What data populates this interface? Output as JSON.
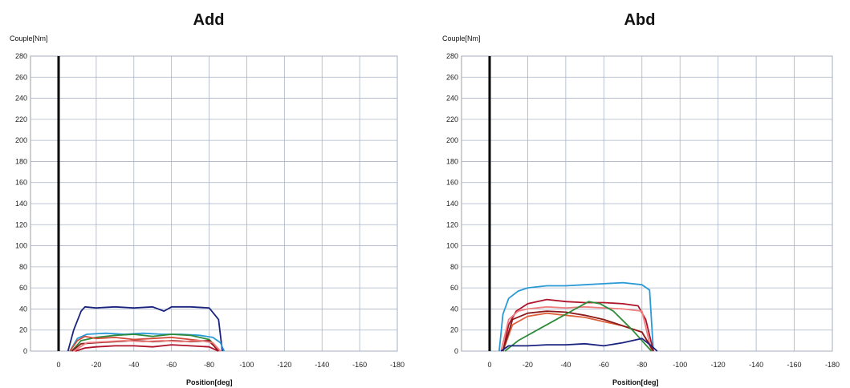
{
  "chart_data": [
    {
      "type": "line",
      "title": "Add",
      "ylabel": "Couple[Nm]",
      "xlabel": "Position[deg]",
      "xlim": [
        0,
        -180
      ],
      "ylim": [
        0,
        280
      ],
      "xticks": [
        0,
        -20,
        -40,
        -60,
        -80,
        -100,
        -120,
        -140,
        -160,
        -180
      ],
      "yticks": [
        0,
        20,
        40,
        60,
        80,
        100,
        120,
        140,
        160,
        180,
        200,
        220,
        240,
        260,
        280
      ],
      "grid": true,
      "series": [
        {
          "color": "#1a237e",
          "x": [
            -5,
            -8,
            -12,
            -14,
            -20,
            -30,
            -40,
            -50,
            -56,
            -60,
            -70,
            -80,
            -85,
            -87
          ],
          "y": [
            0,
            20,
            38,
            42,
            41,
            42,
            41,
            42,
            38,
            42,
            42,
            41,
            30,
            0
          ]
        },
        {
          "color": "#2a9ad6",
          "x": [
            -6,
            -10,
            -15,
            -25,
            -35,
            -45,
            -55,
            -65,
            -75,
            -82,
            -86,
            -88
          ],
          "y": [
            0,
            12,
            16,
            17,
            16,
            17,
            16,
            16,
            15,
            13,
            8,
            0
          ]
        },
        {
          "color": "#2e8b3a",
          "x": [
            -7,
            -12,
            -20,
            -30,
            -40,
            -50,
            -60,
            -70,
            -80,
            -86
          ],
          "y": [
            0,
            10,
            13,
            15,
            16,
            14,
            16,
            15,
            11,
            0
          ]
        },
        {
          "color": "#d24a3a",
          "x": [
            -6,
            -10,
            -14,
            -20,
            -30,
            -40,
            -50,
            -60,
            -70,
            -80,
            -86
          ],
          "y": [
            0,
            10,
            14,
            12,
            13,
            11,
            12,
            13,
            11,
            9,
            0
          ]
        },
        {
          "color": "#8b1a1a",
          "x": [
            -7,
            -12,
            -20,
            -30,
            -40,
            -50,
            -60,
            -70,
            -80,
            -85
          ],
          "y": [
            0,
            7,
            8,
            9,
            10,
            9,
            10,
            9,
            10,
            0
          ]
        },
        {
          "color": "#b0142a",
          "x": [
            -9,
            -14,
            -20,
            -30,
            -40,
            -50,
            -60,
            -70,
            -80,
            -85
          ],
          "y": [
            0,
            3,
            4,
            5,
            5,
            4,
            6,
            5,
            4,
            0
          ]
        },
        {
          "color": "#f08080",
          "x": [
            -8,
            -15,
            -25,
            -35,
            -45,
            -55,
            -65,
            -75,
            -82,
            -86
          ],
          "y": [
            0,
            8,
            9,
            10,
            9,
            10,
            9,
            10,
            8,
            0
          ]
        }
      ]
    },
    {
      "type": "line",
      "title": "Abd",
      "ylabel": "Couple[Nm]",
      "xlabel": "Position[deg]",
      "xlim": [
        0,
        -180
      ],
      "ylim": [
        0,
        280
      ],
      "xticks": [
        0,
        -20,
        -40,
        -60,
        -80,
        -100,
        -120,
        -140,
        -160,
        -180
      ],
      "yticks": [
        0,
        20,
        40,
        60,
        80,
        100,
        120,
        140,
        160,
        180,
        200,
        220,
        240,
        260,
        280
      ],
      "grid": true,
      "series": [
        {
          "color": "#2a9ad6",
          "x": [
            -5,
            -7,
            -10,
            -15,
            -20,
            -30,
            -40,
            -50,
            -60,
            -70,
            -80,
            -84,
            -86
          ],
          "y": [
            0,
            35,
            50,
            57,
            60,
            62,
            62,
            63,
            64,
            65,
            63,
            58,
            0
          ]
        },
        {
          "color": "#b0142a",
          "x": [
            -7,
            -10,
            -14,
            -20,
            -30,
            -40,
            -50,
            -60,
            -70,
            -78,
            -82,
            -86
          ],
          "y": [
            0,
            25,
            38,
            45,
            49,
            47,
            46,
            46,
            45,
            43,
            30,
            0
          ]
        },
        {
          "color": "#f08080",
          "x": [
            -6,
            -10,
            -15,
            -20,
            -30,
            -40,
            -50,
            -60,
            -70,
            -80,
            -85
          ],
          "y": [
            0,
            30,
            38,
            40,
            42,
            41,
            42,
            41,
            40,
            38,
            0
          ]
        },
        {
          "color": "#e0603a",
          "x": [
            -7,
            -12,
            -20,
            -30,
            -40,
            -50,
            -60,
            -70,
            -80,
            -86
          ],
          "y": [
            0,
            25,
            33,
            36,
            34,
            32,
            28,
            24,
            18,
            0
          ]
        },
        {
          "color": "#8b1a1a",
          "x": [
            -7,
            -12,
            -20,
            -30,
            -40,
            -50,
            -60,
            -70,
            -80,
            -86
          ],
          "y": [
            0,
            30,
            36,
            38,
            37,
            34,
            30,
            24,
            18,
            0
          ]
        },
        {
          "color": "#2e8b3a",
          "x": [
            -8,
            -15,
            -25,
            -35,
            -45,
            -52,
            -58,
            -65,
            -75,
            -85
          ],
          "y": [
            0,
            10,
            20,
            30,
            40,
            47,
            45,
            38,
            20,
            0
          ]
        },
        {
          "color": "#1a237e",
          "x": [
            -6,
            -10,
            -20,
            -30,
            -40,
            -50,
            -60,
            -70,
            -80,
            -85,
            -88
          ],
          "y": [
            0,
            5,
            5,
            6,
            6,
            7,
            5,
            8,
            12,
            5,
            0
          ]
        }
      ]
    }
  ]
}
